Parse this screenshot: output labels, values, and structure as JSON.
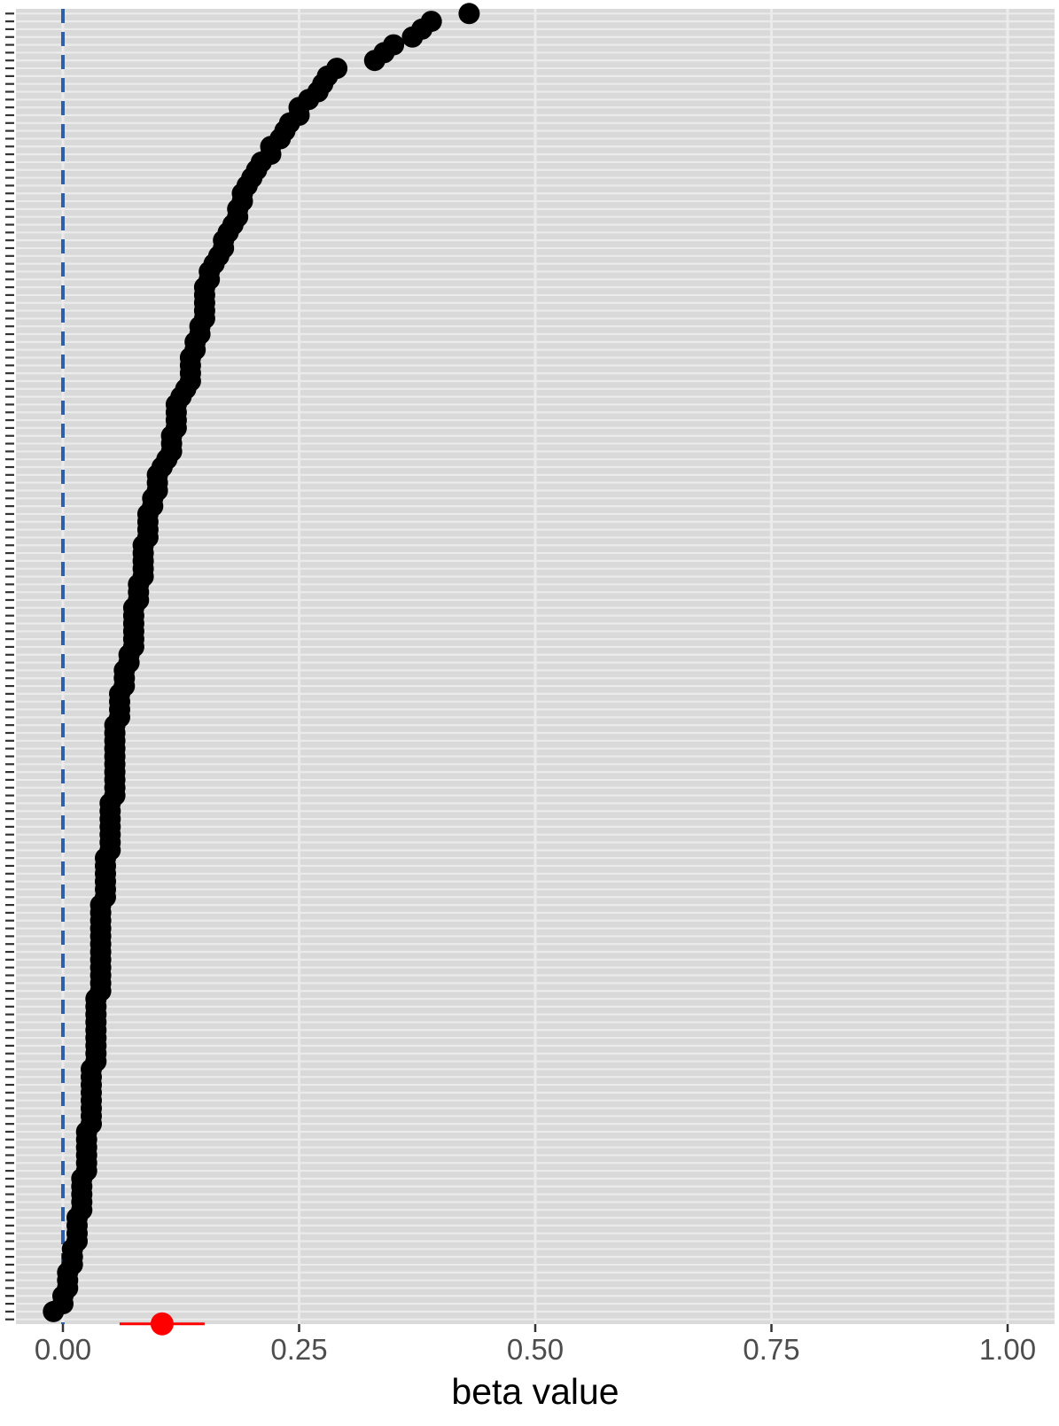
{
  "chart_data": {
    "type": "scatter",
    "title": "",
    "xlabel": "beta value",
    "ylabel": "",
    "xlim": [
      -0.03,
      1.05
    ],
    "x_ticks": [
      {
        "value": 0.0,
        "label": "0.00"
      },
      {
        "value": 0.25,
        "label": "0.25"
      },
      {
        "value": 0.5,
        "label": "0.50"
      },
      {
        "value": 0.75,
        "label": "0.75"
      },
      {
        "value": 1.0,
        "label": "1.00"
      }
    ],
    "y_axis": "ordered individual estimates (unlabeled), smallest at bottom, largest at top",
    "grid": true,
    "background_color": "#d9d9d9",
    "gridline_color": "#ebebeb",
    "reference_line": {
      "x": 0.0,
      "style": "dashed",
      "color": "#2e5fa8"
    },
    "series": [
      {
        "color": "#000000",
        "estimates_by_rank_from_bottom": [
          -0.01,
          0.0,
          0.0,
          0.005,
          0.005,
          0.005,
          0.01,
          0.01,
          0.01,
          0.015,
          0.015,
          0.015,
          0.015,
          0.02,
          0.02,
          0.02,
          0.02,
          0.02,
          0.025,
          0.025,
          0.025,
          0.025,
          0.025,
          0.025,
          0.03,
          0.03,
          0.03,
          0.03,
          0.03,
          0.03,
          0.03,
          0.03,
          0.035,
          0.035,
          0.035,
          0.035,
          0.035,
          0.035,
          0.035,
          0.035,
          0.035,
          0.04,
          0.04,
          0.04,
          0.04,
          0.04,
          0.04,
          0.04,
          0.04,
          0.04,
          0.04,
          0.04,
          0.04,
          0.045,
          0.045,
          0.045,
          0.045,
          0.045,
          0.045,
          0.05,
          0.05,
          0.05,
          0.05,
          0.05,
          0.05,
          0.05,
          0.055,
          0.055,
          0.055,
          0.055,
          0.055,
          0.055,
          0.055,
          0.055,
          0.055,
          0.055,
          0.06,
          0.06,
          0.06,
          0.06,
          0.065,
          0.065,
          0.065,
          0.07,
          0.07,
          0.075,
          0.075,
          0.075,
          0.075,
          0.075,
          0.075,
          0.08,
          0.08,
          0.08,
          0.085,
          0.085,
          0.085,
          0.085,
          0.085,
          0.09,
          0.09,
          0.09,
          0.09,
          0.095,
          0.095,
          0.1,
          0.1,
          0.1,
          0.105,
          0.11,
          0.115,
          0.115,
          0.115,
          0.12,
          0.12,
          0.12,
          0.12,
          0.125,
          0.13,
          0.135,
          0.135,
          0.135,
          0.135,
          0.14,
          0.14,
          0.145,
          0.145,
          0.15,
          0.15,
          0.15,
          0.15,
          0.15,
          0.155,
          0.155,
          0.16,
          0.165,
          0.17,
          0.17,
          0.175,
          0.18,
          0.185,
          0.185,
          0.19,
          0.19,
          0.195,
          0.2,
          0.205,
          0.21,
          0.22,
          0.22,
          0.23,
          0.235,
          0.24,
          0.25,
          0.25,
          0.26,
          0.27,
          0.275,
          0.28,
          0.29,
          0.33,
          0.34,
          0.35,
          0.37,
          0.38,
          0.39,
          0.43
        ]
      },
      {
        "color": "#ff0000",
        "points": [
          {
            "x": 0.105,
            "lower": 0.06,
            "upper": 0.15
          }
        ]
      }
    ]
  }
}
